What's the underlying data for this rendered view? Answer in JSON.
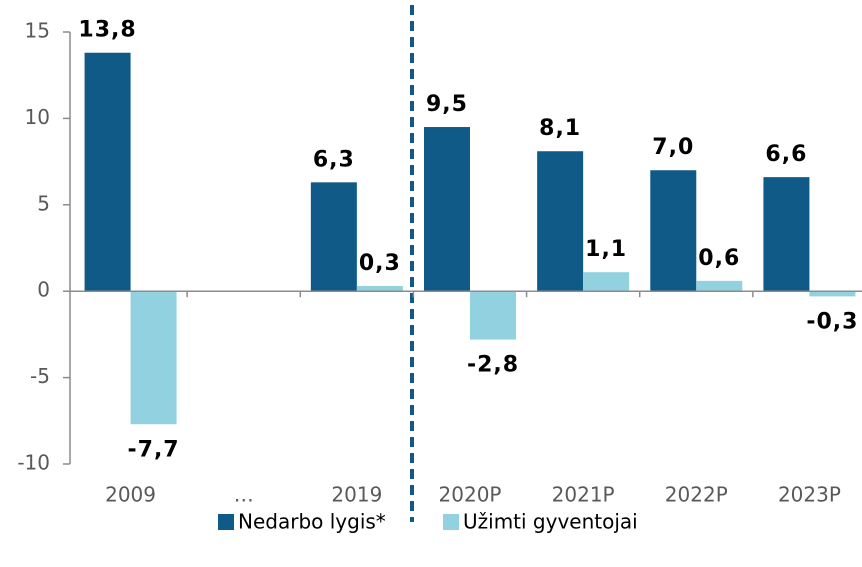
{
  "chart_data": {
    "type": "bar",
    "categories": [
      "2009",
      "…",
      "2019",
      "2020P",
      "2021P",
      "2022P",
      "2023P"
    ],
    "series": [
      {
        "name": "Nedarbo lygis*",
        "color": "#0f5a86",
        "values": [
          13.8,
          null,
          6.3,
          9.5,
          8.1,
          7.0,
          6.6
        ],
        "value_labels": [
          "13,8",
          null,
          "6,3",
          "9,5",
          "8,1",
          "7,0",
          "6,6"
        ]
      },
      {
        "name": "Užimti gyventojai",
        "color": "#92d2e0",
        "values": [
          -7.7,
          null,
          0.3,
          -2.8,
          1.1,
          0.6,
          -0.3
        ],
        "value_labels": [
          "-7,7",
          null,
          "0,3",
          "-2,8",
          "1,1",
          "0,6",
          "-0,3"
        ]
      }
    ],
    "ylim": [
      -10,
      15
    ],
    "yticks": [
      -10,
      -5,
      0,
      5,
      10,
      15
    ],
    "grid": false,
    "legend": "bottom"
  }
}
